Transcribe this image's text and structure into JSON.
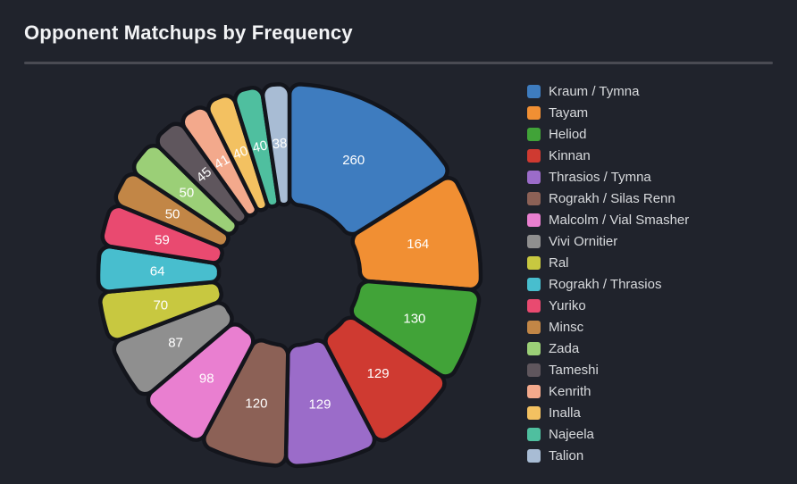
{
  "title": "Opponent Matchups by Frequency",
  "theme": {
    "background": "#20232c",
    "title_color": "#f2f3f5",
    "divider_color": "#4a4b53",
    "slice_gap_color": "#13151c",
    "slice_label_color": "#ffffff",
    "legend_text_color": "#d8dadd"
  },
  "chart_data": {
    "type": "pie",
    "title": "Opponent Matchups by Frequency",
    "donut": true,
    "start_angle_deg_from_top": 0,
    "direction": "clockwise",
    "label_position": "inside",
    "legend_position": "right",
    "series": [
      {
        "name": "Kraum / Tymna",
        "value": 260,
        "color": "#3e7cbf"
      },
      {
        "name": "Tayam",
        "value": 164,
        "color": "#f18f33"
      },
      {
        "name": "Heliod",
        "value": 130,
        "color": "#41a338"
      },
      {
        "name": "Kinnan",
        "value": 129,
        "color": "#cf3a31"
      },
      {
        "name": "Thrasios / Tymna",
        "value": 129,
        "color": "#9b6cc9"
      },
      {
        "name": "Rograkh / Silas Renn",
        "value": 120,
        "color": "#8c6156"
      },
      {
        "name": "Malcolm / Vial Smasher",
        "value": 98,
        "color": "#e97fd0"
      },
      {
        "name": "Vivi Ornitier",
        "value": 87,
        "color": "#8f8f8f"
      },
      {
        "name": "Ral",
        "value": 70,
        "color": "#c8c840"
      },
      {
        "name": "Rograkh / Thrasios",
        "value": 64,
        "color": "#48bece"
      },
      {
        "name": "Yuriko",
        "value": 59,
        "color": "#e94a70"
      },
      {
        "name": "Minsc",
        "value": 50,
        "color": "#c28646"
      },
      {
        "name": "Zada",
        "value": 50,
        "color": "#9bcf77"
      },
      {
        "name": "Tameshi",
        "value": 45,
        "color": "#5f565d"
      },
      {
        "name": "Kenrith",
        "value": 41,
        "color": "#f3a98c"
      },
      {
        "name": "Inalla",
        "value": 40,
        "color": "#f3c161"
      },
      {
        "name": "Najeela",
        "value": 40,
        "color": "#4fbf9f"
      },
      {
        "name": "Talion",
        "value": 38,
        "color": "#a8bcd4"
      }
    ]
  }
}
